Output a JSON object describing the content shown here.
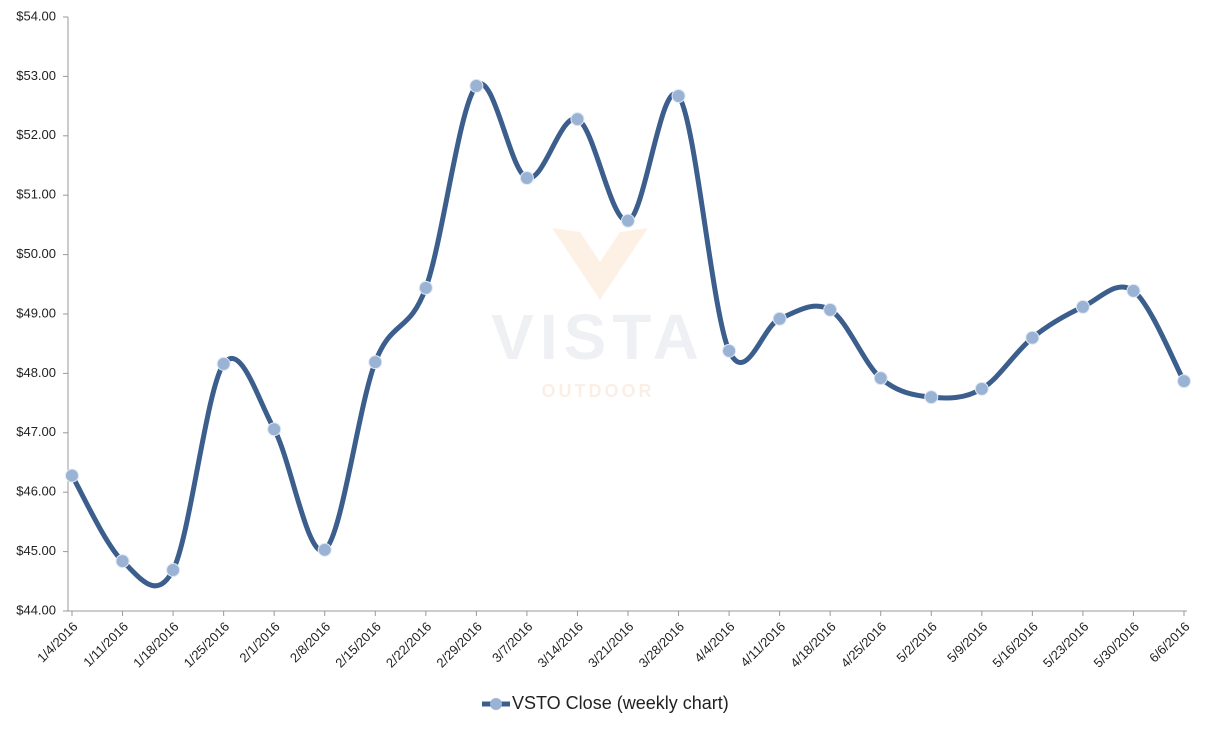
{
  "chart_data": {
    "type": "line",
    "watermark": [
      "VISTA",
      "OUTDOOR"
    ],
    "categories": [
      "1/4/2016",
      "1/11/2016",
      "1/18/2016",
      "1/25/2016",
      "2/1/2016",
      "2/8/2016",
      "2/15/2016",
      "2/22/2016",
      "2/29/2016",
      "3/7/2016",
      "3/14/2016",
      "3/21/2016",
      "3/28/2016",
      "4/4/2016",
      "4/11/2016",
      "4/18/2016",
      "4/25/2016",
      "5/2/2016",
      "5/9/2016",
      "5/16/2016",
      "5/23/2016",
      "5/30/2016",
      "6/6/2016"
    ],
    "series": [
      {
        "name": "VSTO Close (weekly chart)",
        "color": "#3b5e8c",
        "marker_color": "#9ab3d5",
        "values": [
          46.28,
          44.84,
          44.69,
          48.16,
          47.06,
          45.03,
          48.19,
          49.44,
          52.84,
          51.29,
          52.28,
          50.57,
          52.67,
          48.38,
          48.92,
          49.07,
          47.92,
          47.6,
          47.74,
          48.6,
          49.12,
          49.39,
          47.87
        ]
      }
    ],
    "ylim": [
      44,
      54
    ],
    "yticks": [
      {
        "value": 44,
        "label": "$44.00"
      },
      {
        "value": 45,
        "label": "$45.00"
      },
      {
        "value": 46,
        "label": "$46.00"
      },
      {
        "value": 47,
        "label": "$47.00"
      },
      {
        "value": 48,
        "label": "$48.00"
      },
      {
        "value": 49,
        "label": "$49.00"
      },
      {
        "value": 50,
        "label": "$50.00"
      },
      {
        "value": 51,
        "label": "$51.00"
      },
      {
        "value": 52,
        "label": "$52.00"
      },
      {
        "value": 53,
        "label": "$53.00"
      },
      {
        "value": 54,
        "label": "$54.00"
      }
    ],
    "grid": false,
    "smooth": true,
    "legend": "bottom"
  }
}
